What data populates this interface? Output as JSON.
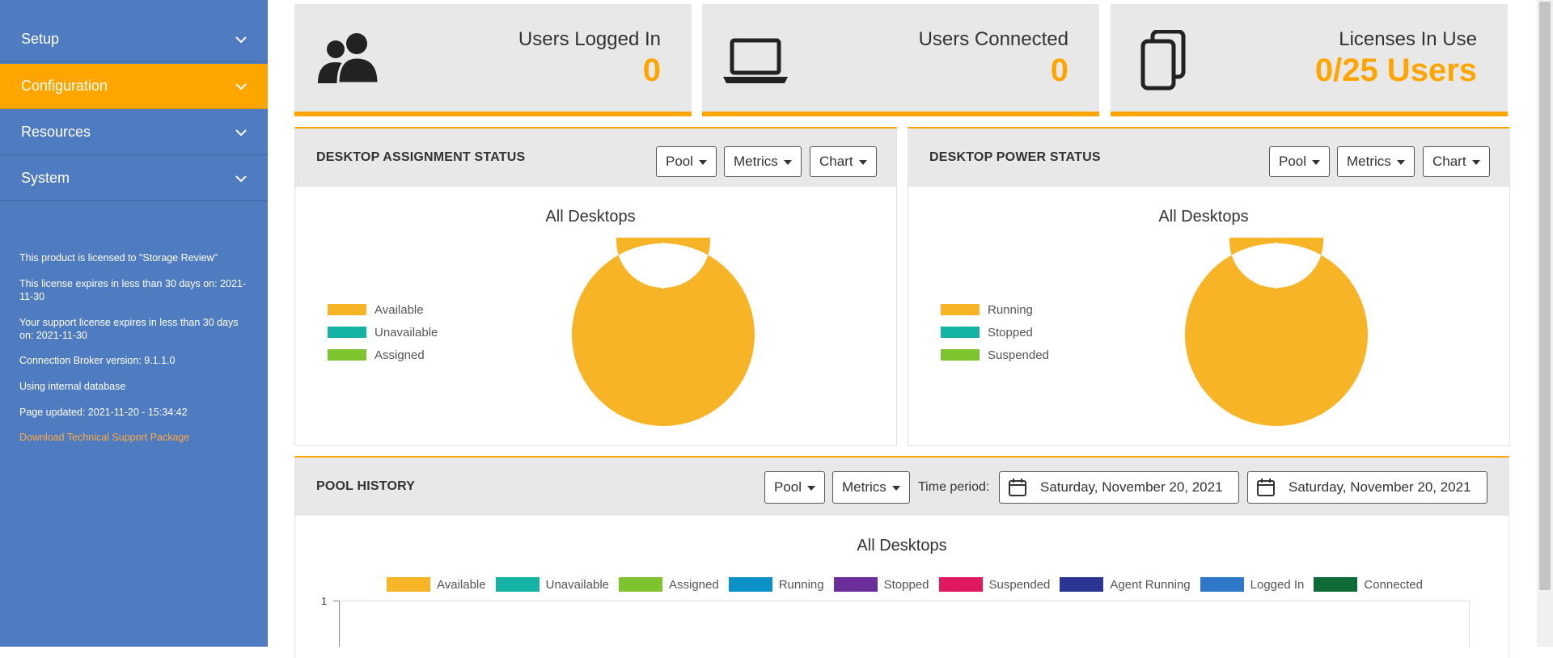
{
  "sidebar": {
    "items": [
      {
        "label": "Setup"
      },
      {
        "label": "Configuration"
      },
      {
        "label": "Resources"
      },
      {
        "label": "System"
      }
    ],
    "info": {
      "licensed_to": "This product is licensed to \"Storage Review\"",
      "license_expires": "This license expires in less than 30 days on: 2021-11-30",
      "support_expires": "Your support license expires in less than 30 days on: 2021-11-30",
      "broker_version": "Connection Broker version: 9.1.1.0",
      "database": "Using internal database",
      "page_updated": "Page updated: 2021-11-20 - 15:34:42",
      "download_link": "Download Technical Support Package"
    }
  },
  "stats": [
    {
      "label": "Users Logged In",
      "value": "0",
      "icon": "users-icon"
    },
    {
      "label": "Users Connected",
      "value": "0",
      "icon": "laptop-icon"
    },
    {
      "label": "Licenses In Use",
      "value": "0/25 Users",
      "icon": "documents-icon"
    }
  ],
  "assignment": {
    "title": "DESKTOP ASSIGNMENT STATUS",
    "buttons": {
      "pool": "Pool",
      "metrics": "Metrics",
      "chart": "Chart"
    },
    "chart_title": "All Desktops",
    "legend": [
      "Available",
      "Unavailable",
      "Assigned"
    ]
  },
  "power": {
    "title": "DESKTOP POWER STATUS",
    "buttons": {
      "pool": "Pool",
      "metrics": "Metrics",
      "chart": "Chart"
    },
    "chart_title": "All Desktops",
    "legend": [
      "Running",
      "Stopped",
      "Suspended"
    ]
  },
  "history": {
    "title": "POOL HISTORY",
    "buttons": {
      "pool": "Pool",
      "metrics": "Metrics"
    },
    "time_label": "Time period:",
    "date_start": "Saturday, November 20, 2021",
    "date_end": "Saturday, November 20, 2021",
    "chart_title": "All Desktops",
    "y_tick": "1",
    "legend": [
      "Available",
      "Unavailable",
      "Assigned",
      "Running",
      "Stopped",
      "Suspended",
      "Agent Running",
      "Logged In",
      "Connected"
    ]
  },
  "colors": {
    "accent": "#ffa500",
    "sidebar": "#4f7bc0",
    "available": "#f7b426",
    "unavailable": "#14b3a3",
    "assigned": "#7ec42e",
    "running": "#0b90c8",
    "stopped": "#6b2e9a",
    "suspended": "#e0185f",
    "agent_running": "#2b3593",
    "logged_in": "#2f77c8",
    "connected": "#0e6b38"
  },
  "chart_data": [
    {
      "type": "pie",
      "title": "All Desktops",
      "categories": [
        "Available",
        "Unavailable",
        "Assigned"
      ],
      "values": [
        1,
        0,
        0
      ],
      "legend": "left"
    },
    {
      "type": "pie",
      "title": "All Desktops",
      "categories": [
        "Running",
        "Stopped",
        "Suspended"
      ],
      "values": [
        1,
        0,
        0
      ],
      "legend": "left"
    },
    {
      "type": "line",
      "title": "All Desktops",
      "series": [
        {
          "name": "Available",
          "values": []
        },
        {
          "name": "Unavailable",
          "values": []
        },
        {
          "name": "Assigned",
          "values": []
        },
        {
          "name": "Running",
          "values": []
        },
        {
          "name": "Stopped",
          "values": []
        },
        {
          "name": "Suspended",
          "values": []
        },
        {
          "name": "Agent Running",
          "values": []
        },
        {
          "name": "Logged In",
          "values": []
        },
        {
          "name": "Connected",
          "values": []
        }
      ],
      "yticks": [
        "1"
      ],
      "legend": "top"
    }
  ]
}
